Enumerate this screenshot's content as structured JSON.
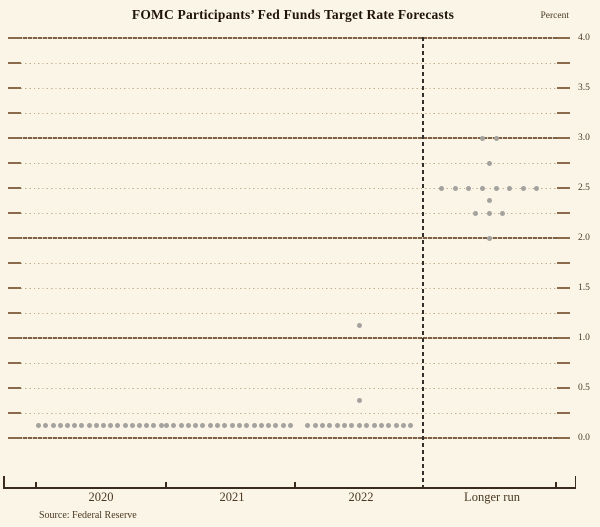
{
  "title": "FOMC Participants’ Fed Funds Target Rate Forecasts",
  "y_axis_unit_label": "Percent",
  "source": "Source: Federal Reserve",
  "colors": {
    "background": "#faf5e6",
    "major_gridline": "#7f6245",
    "minor_gridline": "#c4ad8d",
    "grid_end_cap": "#8a6c4c",
    "dot": "#a3a29e",
    "separator": "#33302b",
    "axis": "#3a2c1c",
    "title_text": "#20130a",
    "label_text": "#4a3823"
  },
  "chart_data": {
    "type": "scatter",
    "subtype": "fomc-dot-plot",
    "title": "FOMC Participants’ Fed Funds Target Rate Forecasts",
    "ylabel": "Percent",
    "ylim": [
      0.0,
      4.0
    ],
    "y_grid_step": 0.25,
    "y_major_line_step": 1.0,
    "grid_on": true,
    "y_ticks": [
      {
        "value": 4.0,
        "label": "4.0"
      },
      {
        "value": 3.5,
        "label": "3.5"
      },
      {
        "value": 3.0,
        "label": "3.0"
      },
      {
        "value": 2.5,
        "label": "2.5"
      },
      {
        "value": 2.0,
        "label": "2.0"
      },
      {
        "value": 1.5,
        "label": "1.5"
      },
      {
        "value": 1.0,
        "label": "1.0"
      },
      {
        "value": 0.5,
        "label": "0.5"
      },
      {
        "value": 0.0,
        "label": "0.0"
      }
    ],
    "x_categories": [
      "2020",
      "2021",
      "2022",
      "Longer run"
    ],
    "separator_before_category": "Longer run",
    "series": [
      {
        "name": "2020",
        "points": [
          {
            "rate": 0.125,
            "count": 18
          }
        ]
      },
      {
        "name": "2021",
        "points": [
          {
            "rate": 0.125,
            "count": 18
          }
        ]
      },
      {
        "name": "2022",
        "points": [
          {
            "rate": 0.125,
            "count": 15
          },
          {
            "rate": 0.375,
            "count": 1
          },
          {
            "rate": 1.125,
            "count": 1
          }
        ]
      },
      {
        "name": "Longer run",
        "points": [
          {
            "rate": 2.0,
            "count": 1
          },
          {
            "rate": 2.25,
            "count": 3
          },
          {
            "rate": 2.375,
            "count": 1
          },
          {
            "rate": 2.5,
            "count": 8
          },
          {
            "rate": 2.75,
            "count": 1
          },
          {
            "rate": 3.0,
            "count": 2
          }
        ]
      }
    ]
  }
}
